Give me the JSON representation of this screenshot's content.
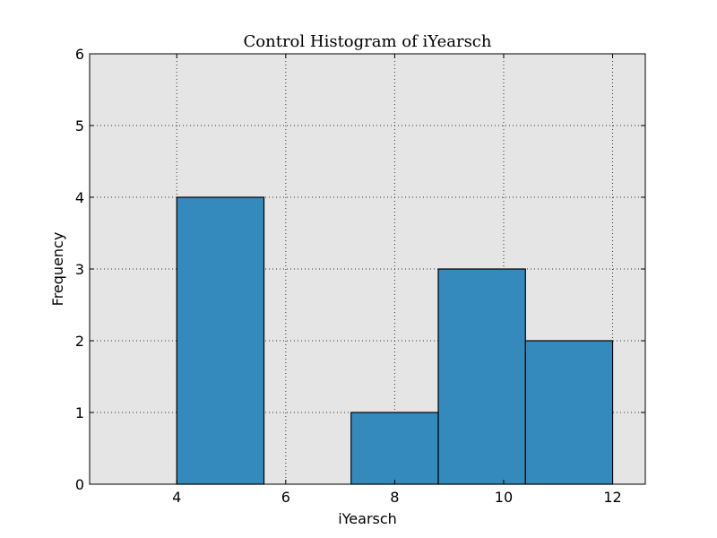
{
  "chart_data": {
    "type": "bar",
    "title": "Control Histogram of iYearsch",
    "xlabel": "iYearsch",
    "ylabel": "Frequency",
    "xlim": [
      2.4,
      12.6
    ],
    "ylim": [
      0,
      6
    ],
    "xticks": [
      4,
      6,
      8,
      10,
      12
    ],
    "yticks": [
      0,
      1,
      2,
      3,
      4,
      5,
      6
    ],
    "grid": true,
    "bins": [
      {
        "x0": 4.0,
        "x1": 5.6,
        "value": 4
      },
      {
        "x0": 5.6,
        "x1": 7.2,
        "value": 0
      },
      {
        "x0": 7.2,
        "x1": 8.8,
        "value": 1
      },
      {
        "x0": 8.8,
        "x1": 10.4,
        "value": 3
      },
      {
        "x0": 10.4,
        "x1": 12.0,
        "value": 2
      }
    ],
    "colors": {
      "bar": "#348abd",
      "plot_background": "#e5e5e5",
      "grid": "#333333"
    }
  }
}
